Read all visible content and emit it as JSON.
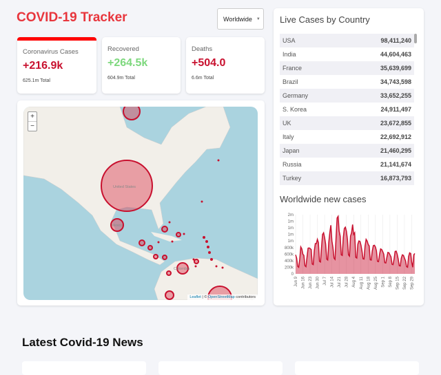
{
  "header": {
    "title": "COVID-19 Tracker",
    "region_select": "Worldwide"
  },
  "stats": [
    {
      "label": "Coronavirus Cases",
      "value": "+216.9k",
      "total": "625.1m Total",
      "color": "#c8102e"
    },
    {
      "label": "Recovered",
      "value": "+264.5k",
      "total": "604.9m Total",
      "color": "#7dd87d"
    },
    {
      "label": "Deaths",
      "value": "+504.0",
      "total": "6.6m Total",
      "color": "#c8102e"
    }
  ],
  "map": {
    "zoom_in": "+",
    "zoom_out": "−",
    "labels": [
      "United States",
      "Mexico",
      "Colombia"
    ],
    "attribution_leaflet": "Leaflet",
    "attribution_sep": " | © ",
    "attribution_osm": "OpenStreetMap",
    "attribution_tail": " contributors"
  },
  "live_cases": {
    "title": "Live Cases by Country",
    "rows": [
      {
        "country": "USA",
        "cases": "98,411,240"
      },
      {
        "country": "India",
        "cases": "44,604,463"
      },
      {
        "country": "France",
        "cases": "35,639,699"
      },
      {
        "country": "Brazil",
        "cases": "34,743,598"
      },
      {
        "country": "Germany",
        "cases": "33,652,255"
      },
      {
        "country": "S. Korea",
        "cases": "24,911,497"
      },
      {
        "country": "UK",
        "cases": "23,672,855"
      },
      {
        "country": "Italy",
        "cases": "22,692,912"
      },
      {
        "country": "Japan",
        "cases": "21,460,295"
      },
      {
        "country": "Russia",
        "cases": "21,141,674"
      },
      {
        "country": "Turkey",
        "cases": "16,873,793"
      }
    ]
  },
  "chart_data": {
    "type": "area",
    "title": "Worldwide new cases",
    "xlabel": "",
    "ylabel": "",
    "ylim": [
      0,
      1800000
    ],
    "yticks": [
      0,
      200000,
      400000,
      600000,
      800000,
      1000000,
      1200000,
      1400000,
      1600000,
      1800000
    ],
    "ytick_labels": [
      "0",
      "200k",
      "400k",
      "600k",
      "800k",
      "1m",
      "1m",
      "1m",
      "1m",
      "2m"
    ],
    "xtick_labels": [
      "Jun 9",
      "Jun 16",
      "Jun 23",
      "Jun 30",
      "Jul 7",
      "Jul 14",
      "Jul 21",
      "Jul 28",
      "Aug 4",
      "Aug 11",
      "Aug 18",
      "Aug 25",
      "Sep 1",
      "Sep 8",
      "Sep 15",
      "Sep 22",
      "Sep 29"
    ],
    "grid": true,
    "color": "#c8102e",
    "values": [
      580000,
      480000,
      230000,
      200000,
      450000,
      820000,
      760000,
      600000,
      560000,
      250000,
      220000,
      500000,
      780000,
      790000,
      770000,
      740000,
      300000,
      280000,
      700000,
      920000,
      920000,
      1050000,
      950000,
      380000,
      360000,
      800000,
      1200000,
      1250000,
      1100000,
      900000,
      450000,
      420000,
      950000,
      1250000,
      1480000,
      1000000,
      800000,
      480000,
      440000,
      1100000,
      1700000,
      1750000,
      1300000,
      1150000,
      580000,
      560000,
      1100000,
      1380000,
      1420000,
      1300000,
      1050000,
      580000,
      540000,
      1150000,
      1250000,
      1500000,
      1200000,
      1250000,
      500000,
      480000,
      900000,
      1000000,
      990000,
      880000,
      700000,
      460000,
      450000,
      850000,
      1050000,
      1000000,
      900000,
      850000,
      430000,
      420000,
      700000,
      860000,
      870000,
      820000,
      700000,
      380000,
      370000,
      600000,
      760000,
      740000,
      680000,
      600000,
      340000,
      330000,
      500000,
      650000,
      640000,
      580000,
      520000,
      290000,
      280000,
      450000,
      680000,
      690000,
      600000,
      450000,
      250000,
      240000,
      480000,
      580000,
      560000,
      480000,
      400000,
      220000,
      200000,
      530000,
      640000,
      620000,
      350000,
      200000,
      580000,
      620000
    ]
  },
  "news": {
    "title": "Latest Covid-19 News"
  }
}
